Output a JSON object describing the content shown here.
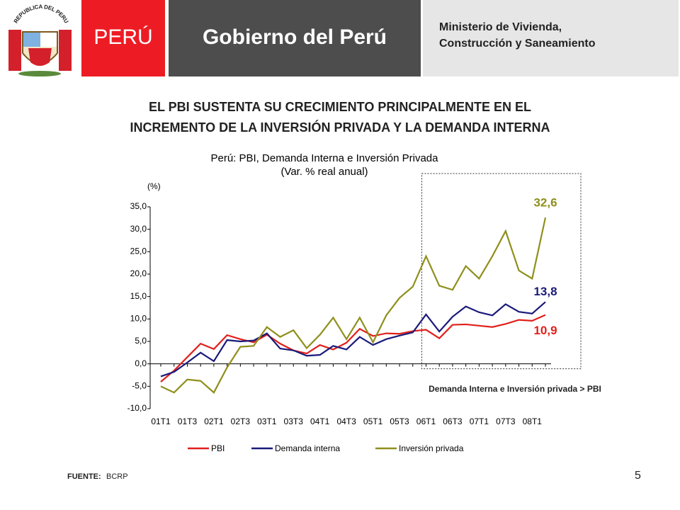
{
  "header": {
    "emblem_text": "REPUBLICA DEL PERU",
    "brand": "PERÚ",
    "government": "Gobierno del Perú",
    "ministry_line1": "Ministerio de Vivienda,",
    "ministry_line2": "Construcción y Saneamiento"
  },
  "slide_title_line1": "EL PBI SUSTENTA SU CRECIMIENTO PRINCIPALMENTE EN EL",
  "slide_title_line2": "INCREMENTO DE LA INVERSIÓN PRIVADA Y LA DEMANDA INTERNA",
  "source_label": "FUENTE:",
  "source": "BCRP",
  "page_number": "5",
  "chart_data": {
    "type": "line",
    "title": "Perú: PBI, Demanda Interna e Inversión Privada",
    "subtitle": "(Var. % real anual)",
    "y_label": "(%)",
    "annotation": "Demanda Interna e Inversión privada > PBI",
    "categories": [
      "01T1",
      null,
      "01T3",
      null,
      "02T1",
      null,
      "02T3",
      null,
      "03T1",
      null,
      "03T3",
      null,
      "04T1",
      null,
      "04T3",
      null,
      "05T1",
      null,
      "05T3",
      null,
      "06T1",
      null,
      "06T3",
      null,
      "07T1",
      null,
      "07T3",
      null,
      "08T1",
      null
    ],
    "ylim": [
      -10,
      35
    ],
    "yticks": [
      {
        "value": -10,
        "label": "-10,0"
      },
      {
        "value": -5,
        "label": "-5,0"
      },
      {
        "value": 0,
        "label": "0,0"
      },
      {
        "value": 5,
        "label": "5,0"
      },
      {
        "value": 10,
        "label": "10,0"
      },
      {
        "value": 15,
        "label": "15,0"
      },
      {
        "value": 20,
        "label": "20,0"
      },
      {
        "value": 25,
        "label": "25,0"
      },
      {
        "value": 30,
        "label": "30,0"
      },
      {
        "value": 35,
        "label": "35,0"
      }
    ],
    "legend": "bottom",
    "series": [
      {
        "name": "PBI",
        "color": "#e0201b",
        "values": [
          -4.0,
          -1.5,
          1.5,
          4.5,
          3.3,
          6.4,
          5.5,
          4.8,
          6.5,
          4.5,
          3.0,
          2.3,
          4.2,
          3.2,
          4.7,
          7.8,
          6.2,
          6.8,
          6.7,
          7.3,
          7.6,
          5.7,
          8.7,
          8.8,
          8.5,
          8.2,
          8.9,
          9.8,
          9.6,
          10.9
        ],
        "value_labels": [
          null,
          null,
          null,
          null,
          null,
          null,
          null,
          null,
          null,
          null,
          null,
          null,
          null,
          null,
          null,
          null,
          null,
          null,
          null,
          null,
          null,
          null,
          null,
          null,
          null,
          null,
          null,
          null,
          null,
          "10,9"
        ]
      },
      {
        "name": "Demanda interna",
        "color": "#1a1a7a",
        "values": [
          -2.8,
          -1.8,
          0.3,
          2.5,
          0.6,
          5.3,
          5.0,
          5.2,
          6.8,
          3.4,
          3.0,
          1.8,
          2.0,
          4.0,
          3.2,
          6.0,
          4.2,
          5.5,
          6.3,
          7.0,
          11.0,
          7.2,
          10.5,
          12.8,
          11.5,
          10.8,
          13.3,
          11.6,
          11.2,
          13.8
        ],
        "value_labels": [
          null,
          null,
          null,
          null,
          null,
          null,
          null,
          null,
          null,
          null,
          null,
          null,
          null,
          null,
          null,
          null,
          null,
          null,
          null,
          null,
          null,
          null,
          null,
          null,
          null,
          null,
          null,
          null,
          null,
          "13,8"
        ]
      },
      {
        "name": "Inversión privada",
        "color": "#8f8f1c",
        "values": [
          -5.0,
          -6.4,
          -3.5,
          -3.8,
          -6.4,
          -0.8,
          3.8,
          4.0,
          8.2,
          6.0,
          7.5,
          3.5,
          6.5,
          10.3,
          5.5,
          10.3,
          4.8,
          10.8,
          14.7,
          17.2,
          24.0,
          17.4,
          16.5,
          21.8,
          19.0,
          24.0,
          29.6,
          20.8,
          19.0,
          32.6
        ],
        "value_labels": [
          null,
          null,
          null,
          null,
          null,
          null,
          null,
          null,
          null,
          null,
          null,
          null,
          null,
          null,
          null,
          null,
          null,
          null,
          null,
          null,
          null,
          null,
          null,
          null,
          null,
          null,
          null,
          null,
          null,
          "32,6"
        ]
      }
    ]
  }
}
